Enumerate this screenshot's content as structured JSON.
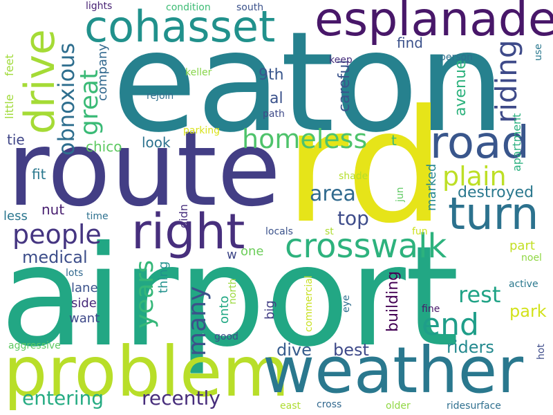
{
  "words": [
    {
      "text": "airport",
      "color": "#22a784"
    },
    {
      "text": "eaton",
      "color": "#26818e"
    },
    {
      "text": "route",
      "color": "#433e85"
    },
    {
      "text": "rd",
      "color": "#e6e419"
    },
    {
      "text": "problem",
      "color": "#b8de29"
    },
    {
      "text": "weather",
      "color": "#2a788e"
    },
    {
      "text": "esplanade",
      "color": "#481769"
    },
    {
      "text": "cohasset",
      "color": "#21918c"
    },
    {
      "text": "drive",
      "color": "#a5db36"
    },
    {
      "text": "road",
      "color": "#39568c"
    },
    {
      "text": "right",
      "color": "#472f7d"
    },
    {
      "text": "turn",
      "color": "#2c728e"
    },
    {
      "text": "crosswalk",
      "color": "#2db27d"
    },
    {
      "text": "homeless",
      "color": "#4ec36b"
    },
    {
      "text": "end",
      "color": "#1f9e89"
    },
    {
      "text": "riding",
      "color": "#3e4a89"
    },
    {
      "text": "people",
      "color": "#453581"
    },
    {
      "text": "plain",
      "color": "#bddf26"
    },
    {
      "text": "great",
      "color": "#3aba76"
    },
    {
      "text": "obnoxious",
      "color": "#2e6e8e"
    },
    {
      "text": "many",
      "color": "#3b528b"
    },
    {
      "text": "years",
      "color": "#35b779"
    },
    {
      "text": "rest",
      "color": "#20a386"
    },
    {
      "text": "entering",
      "color": "#25ab82"
    },
    {
      "text": "recently",
      "color": "#472d7b"
    },
    {
      "text": "area",
      "color": "#306a8e"
    },
    {
      "text": "top",
      "color": "#3e4c8a"
    },
    {
      "text": "destroyed",
      "color": "#2a788e"
    },
    {
      "text": "medical",
      "color": "#3d4e8a"
    },
    {
      "text": "park",
      "color": "#d2e21b"
    },
    {
      "text": "dive",
      "color": "#365c8d"
    },
    {
      "text": "best",
      "color": "#3e4989"
    },
    {
      "text": "riders",
      "color": "#23898e"
    },
    {
      "text": "building",
      "color": "#440154"
    },
    {
      "text": "find",
      "color": "#3b518b"
    },
    {
      "text": "careful",
      "color": "#3a548c"
    },
    {
      "text": "avenue",
      "color": "#2db27d"
    },
    {
      "text": "9th",
      "color": "#39568c"
    },
    {
      "text": "al",
      "color": "#3b528b"
    },
    {
      "text": "look",
      "color": "#2c728e"
    },
    {
      "text": "chico",
      "color": "#5ec962"
    },
    {
      "text": "company",
      "color": "#31688e"
    },
    {
      "text": "tie",
      "color": "#404688"
    },
    {
      "text": "fit",
      "color": "#2a788e"
    },
    {
      "text": "nut",
      "color": "#481f70"
    },
    {
      "text": "less",
      "color": "#2a768e"
    },
    {
      "text": "lane",
      "color": "#3b528b"
    },
    {
      "text": "side",
      "color": "#472a7a"
    },
    {
      "text": "want",
      "color": "#3e4989"
    },
    {
      "text": "thing",
      "color": "#21918c"
    },
    {
      "text": "onto",
      "color": "#22a884"
    },
    {
      "text": "big",
      "color": "#433e85"
    },
    {
      "text": "one",
      "color": "#6ccd5a"
    },
    {
      "text": "w",
      "color": "#3f4788"
    },
    {
      "text": "t",
      "color": "#3aba76"
    },
    {
      "text": "marked",
      "color": "#24868e"
    },
    {
      "text": "apartment",
      "color": "#2ab07f"
    },
    {
      "text": "part",
      "color": "#c2df23"
    },
    {
      "text": "didn",
      "color": "#472f7d"
    },
    {
      "text": "little",
      "color": "#a0da39"
    },
    {
      "text": "feet",
      "color": "#a0da39"
    },
    {
      "text": "keller",
      "color": "#86d549"
    },
    {
      "text": "rejoin",
      "color": "#2e6f8e"
    },
    {
      "text": "path",
      "color": "#3e4a89"
    },
    {
      "text": "parking",
      "color": "#d8e219"
    },
    {
      "text": "keep",
      "color": "#472f7d"
    },
    {
      "text": "person",
      "color": "#2d708e"
    },
    {
      "text": "use",
      "color": "#2a788e"
    },
    {
      "text": "lights",
      "color": "#482374"
    },
    {
      "text": "condition",
      "color": "#3dbc74"
    },
    {
      "text": "south",
      "color": "#3b528b"
    },
    {
      "text": "shade",
      "color": "#b5de2b"
    },
    {
      "text": "jun",
      "color": "#5ec962"
    },
    {
      "text": "time",
      "color": "#2d708e"
    },
    {
      "text": "st",
      "color": "#addc30"
    },
    {
      "text": "fun",
      "color": "#cde11d"
    },
    {
      "text": "locals",
      "color": "#3b528b"
    },
    {
      "text": "noel",
      "color": "#8fd744"
    },
    {
      "text": "lots",
      "color": "#31688e"
    },
    {
      "text": "active",
      "color": "#2a788e"
    },
    {
      "text": "north",
      "color": "#9bd93c"
    },
    {
      "text": "eye",
      "color": "#2e6e8e"
    },
    {
      "text": "fine",
      "color": "#481769"
    },
    {
      "text": "hot",
      "color": "#3e4c8a"
    },
    {
      "text": "good",
      "color": "#3d4e8a"
    },
    {
      "text": "commercial",
      "color": "#c8e020"
    },
    {
      "text": "aggressive",
      "color": "#5ec962"
    },
    {
      "text": "east",
      "color": "#addc30"
    },
    {
      "text": "cross",
      "color": "#31688e"
    },
    {
      "text": "older",
      "color": "#90d743"
    },
    {
      "text": "ridesurface",
      "color": "#2e6f8e"
    }
  ]
}
